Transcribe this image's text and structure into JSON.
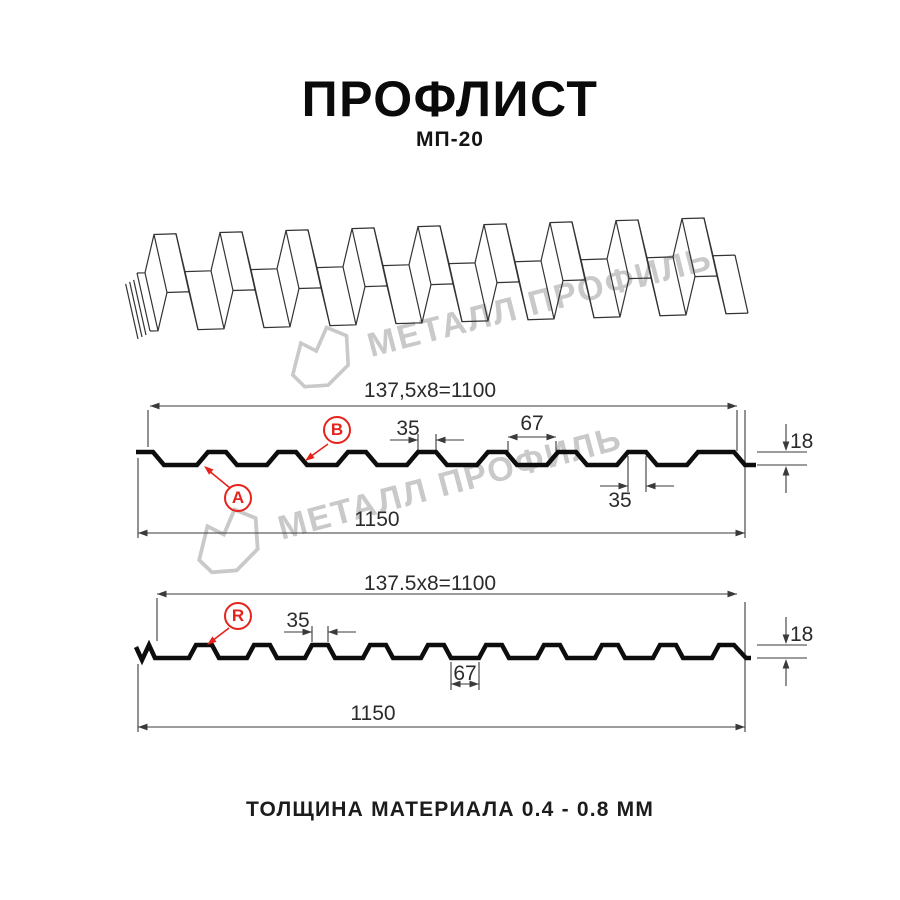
{
  "header": {
    "title": "ПРОФЛИСТ",
    "subtitle": "МП-20"
  },
  "footer": {
    "text": "ТОЛЩИНА МАТЕРИАЛА 0.4 - 0.8 ММ"
  },
  "watermark": {
    "text": "МЕТАЛЛ ПРОФИЛЬ"
  },
  "colors": {
    "accent_red": "#e5231b",
    "line": "#3a3a3a",
    "profile_line": "#0d0d0d",
    "watermark_gray": "#c9c9c9"
  },
  "profile_top": {
    "coverage_width": "137,5x8=1100",
    "rib_top_width": "35",
    "valley_width": "67",
    "height": "18",
    "rib_bottom_width": "35",
    "overall_width": "1150",
    "marker_a": "A",
    "marker_b": "B"
  },
  "profile_bottom": {
    "coverage_width": "137.5x8=1100",
    "rib_top_width": "35",
    "valley_width": "67",
    "height": "18",
    "overall_width": "1150",
    "marker_r": "R"
  }
}
